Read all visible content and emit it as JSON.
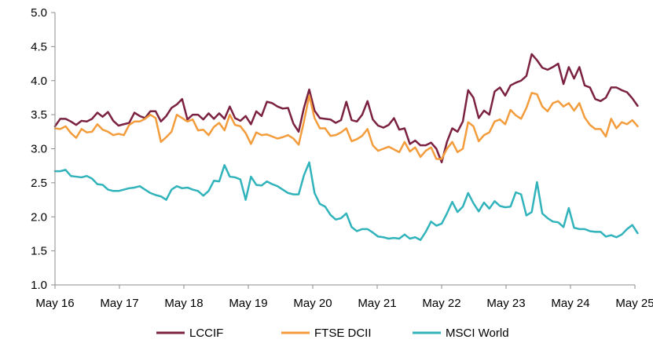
{
  "colors": {
    "LCCIF": "#7b2141",
    "FTSE DCII": "#f39c3c",
    "MSCI World": "#31b3bb",
    "axis": "#8c8c8c"
  },
  "chart_data": {
    "type": "line",
    "title": "",
    "xlabel": "",
    "ylabel": "",
    "ylim": [
      1.0,
      5.0
    ],
    "yticks": [
      "1.0",
      "1.5",
      "2.0",
      "2.5",
      "3.0",
      "3.5",
      "4.0",
      "4.5",
      "5.0"
    ],
    "x_start": 2016.33,
    "x_step": 0.0822,
    "xticks": [
      {
        "label": "May 16",
        "x": 2016.33
      },
      {
        "label": "May 17",
        "x": 2017.33
      },
      {
        "label": "May 18",
        "x": 2018.33
      },
      {
        "label": "May 19",
        "x": 2019.33
      },
      {
        "label": "May 20",
        "x": 2020.33
      },
      {
        "label": "May 21",
        "x": 2021.33
      },
      {
        "label": "May 22",
        "x": 2022.33
      },
      {
        "label": "May 23",
        "x": 2023.33
      },
      {
        "label": "May 24",
        "x": 2024.33
      },
      {
        "label": "May 25",
        "x": 2025.33
      }
    ],
    "grid": false,
    "legend_position": "bottom",
    "series": [
      {
        "name": "LCCIF",
        "color": "#7b2141",
        "values": [
          3.33,
          3.44,
          3.44,
          3.4,
          3.35,
          3.41,
          3.4,
          3.44,
          3.53,
          3.47,
          3.54,
          3.41,
          3.34,
          3.36,
          3.38,
          3.53,
          3.48,
          3.45,
          3.55,
          3.55,
          3.4,
          3.48,
          3.6,
          3.65,
          3.73,
          3.43,
          3.5,
          3.5,
          3.43,
          3.52,
          3.44,
          3.52,
          3.44,
          3.62,
          3.45,
          3.41,
          3.48,
          3.36,
          3.55,
          3.48,
          3.69,
          3.67,
          3.62,
          3.59,
          3.6,
          3.37,
          3.25,
          3.6,
          3.87,
          3.56,
          3.45,
          3.44,
          3.43,
          3.38,
          3.42,
          3.69,
          3.42,
          3.4,
          3.5,
          3.7,
          3.43,
          3.34,
          3.31,
          3.35,
          3.45,
          3.28,
          3.3,
          3.07,
          3.12,
          3.05,
          3.05,
          3.09,
          3.0,
          2.8,
          3.1,
          3.3,
          3.25,
          3.4,
          3.86,
          3.75,
          3.45,
          3.56,
          3.5,
          3.84,
          3.9,
          3.78,
          3.93,
          3.97,
          4.0,
          4.07,
          4.39,
          4.3,
          4.19,
          4.16,
          4.2,
          4.25,
          3.95,
          4.2,
          4.03,
          4.2,
          3.93,
          3.9,
          3.73,
          3.7,
          3.75,
          3.9,
          3.9,
          3.86,
          3.83,
          3.74,
          3.63
        ]
      },
      {
        "name": "FTSE DCII",
        "color": "#f39c3c",
        "values": [
          3.3,
          3.29,
          3.33,
          3.23,
          3.16,
          3.29,
          3.24,
          3.25,
          3.36,
          3.28,
          3.25,
          3.2,
          3.22,
          3.2,
          3.35,
          3.4,
          3.4,
          3.44,
          3.5,
          3.45,
          3.1,
          3.17,
          3.25,
          3.5,
          3.45,
          3.4,
          3.43,
          3.27,
          3.28,
          3.2,
          3.32,
          3.38,
          3.27,
          3.5,
          3.35,
          3.33,
          3.23,
          3.07,
          3.24,
          3.2,
          3.21,
          3.18,
          3.15,
          3.17,
          3.2,
          3.15,
          3.06,
          3.4,
          3.78,
          3.45,
          3.3,
          3.3,
          3.19,
          3.2,
          3.24,
          3.3,
          3.11,
          3.14,
          3.19,
          3.29,
          3.05,
          2.97,
          3.0,
          3.03,
          2.99,
          2.95,
          3.1,
          2.96,
          3.02,
          2.88,
          2.97,
          3.02,
          2.85,
          2.85,
          3.0,
          3.1,
          2.95,
          3.0,
          3.39,
          3.33,
          3.11,
          3.2,
          3.24,
          3.4,
          3.43,
          3.36,
          3.57,
          3.49,
          3.44,
          3.6,
          3.82,
          3.8,
          3.62,
          3.55,
          3.67,
          3.7,
          3.62,
          3.67,
          3.56,
          3.67,
          3.46,
          3.35,
          3.29,
          3.29,
          3.18,
          3.44,
          3.3,
          3.39,
          3.36,
          3.42,
          3.33
        ]
      },
      {
        "name": "MSCI World",
        "color": "#31b3bb",
        "values": [
          2.67,
          2.67,
          2.69,
          2.6,
          2.59,
          2.58,
          2.6,
          2.56,
          2.48,
          2.47,
          2.4,
          2.38,
          2.38,
          2.4,
          2.42,
          2.43,
          2.45,
          2.4,
          2.35,
          2.32,
          2.3,
          2.25,
          2.4,
          2.45,
          2.42,
          2.43,
          2.4,
          2.38,
          2.31,
          2.38,
          2.53,
          2.52,
          2.76,
          2.59,
          2.58,
          2.55,
          2.25,
          2.59,
          2.47,
          2.46,
          2.52,
          2.48,
          2.45,
          2.4,
          2.35,
          2.33,
          2.33,
          2.61,
          2.8,
          2.35,
          2.19,
          2.15,
          2.03,
          1.96,
          1.98,
          2.05,
          1.85,
          1.79,
          1.82,
          1.82,
          1.77,
          1.71,
          1.7,
          1.68,
          1.69,
          1.68,
          1.74,
          1.68,
          1.7,
          1.66,
          1.78,
          1.93,
          1.87,
          1.9,
          2.05,
          2.22,
          2.07,
          2.15,
          2.35,
          2.2,
          2.08,
          2.21,
          2.12,
          2.23,
          2.16,
          2.14,
          2.15,
          2.36,
          2.33,
          2.02,
          2.07,
          2.51,
          2.05,
          1.98,
          1.93,
          1.92,
          1.85,
          2.13,
          1.84,
          1.82,
          1.82,
          1.79,
          1.78,
          1.78,
          1.71,
          1.73,
          1.7,
          1.74,
          1.82,
          1.88,
          1.76
        ]
      }
    ]
  }
}
